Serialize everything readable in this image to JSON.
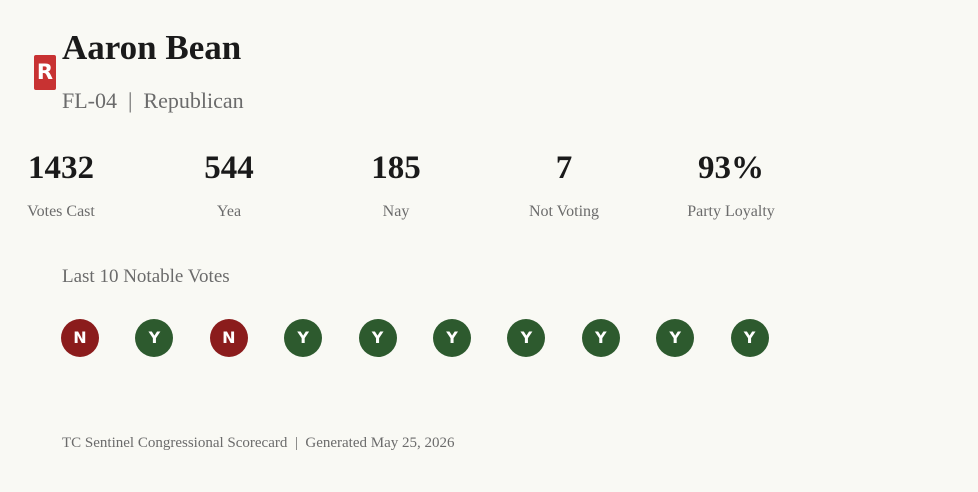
{
  "header": {
    "badge": "R",
    "name": "Aaron Bean",
    "subtitle": "FL-04  |  Republican"
  },
  "stats": [
    {
      "value": "1432",
      "label": "Votes Cast"
    },
    {
      "value": "544",
      "label": "Yea"
    },
    {
      "value": "185",
      "label": "Nay"
    },
    {
      "value": "7",
      "label": "Not Voting"
    },
    {
      "value": "93%",
      "label": "Party Loyalty"
    }
  ],
  "votes": {
    "title": "Last 10 Notable Votes",
    "items": [
      {
        "label": "N",
        "color": "#8b1c1c"
      },
      {
        "label": "Y",
        "color": "#2d5a2e"
      },
      {
        "label": "N",
        "color": "#8b1c1c"
      },
      {
        "label": "Y",
        "color": "#2d5a2e"
      },
      {
        "label": "Y",
        "color": "#2d5a2e"
      },
      {
        "label": "Y",
        "color": "#2d5a2e"
      },
      {
        "label": "Y",
        "color": "#2d5a2e"
      },
      {
        "label": "Y",
        "color": "#2d5a2e"
      },
      {
        "label": "Y",
        "color": "#2d5a2e"
      },
      {
        "label": "Y",
        "color": "#2d5a2e"
      }
    ]
  },
  "footer": "TC Sentinel Congressional Scorecard  |  Generated May 25, 2026"
}
